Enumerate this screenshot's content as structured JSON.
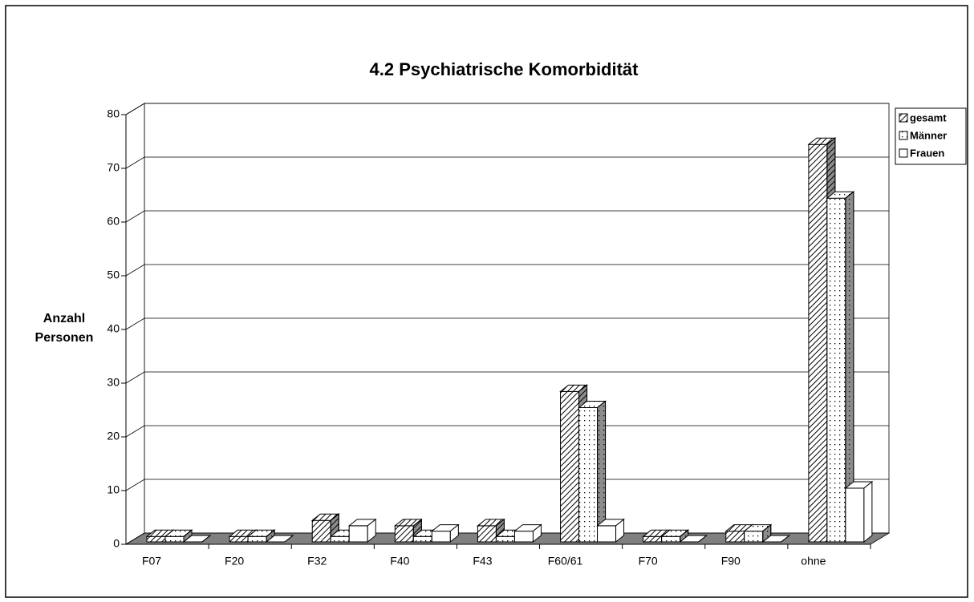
{
  "chart_data": {
    "type": "bar3d",
    "title": "4.2 Psychiatrische Komorbidität",
    "y_label": "Anzahl Personen",
    "categories": [
      "F07",
      "F20",
      "F32",
      "F40",
      "F43",
      "F60/61",
      "F70",
      "F90",
      "ohne"
    ],
    "series": [
      {
        "name": "gesamt",
        "pattern": "diagonal",
        "values": [
          1,
          1,
          4,
          3,
          3,
          28,
          1,
          2,
          74
        ]
      },
      {
        "name": "Männer",
        "pattern": "dots",
        "values": [
          1,
          1,
          1,
          1,
          1,
          25,
          1,
          2,
          64
        ]
      },
      {
        "name": "Frauen",
        "pattern": "none",
        "values": [
          0,
          0,
          3,
          2,
          2,
          3,
          0,
          0,
          10
        ]
      }
    ],
    "ylim": [
      0,
      80
    ],
    "yticks": [
      0,
      10,
      20,
      30,
      40,
      50,
      60,
      70,
      80
    ],
    "grid": true,
    "legend": "right"
  }
}
